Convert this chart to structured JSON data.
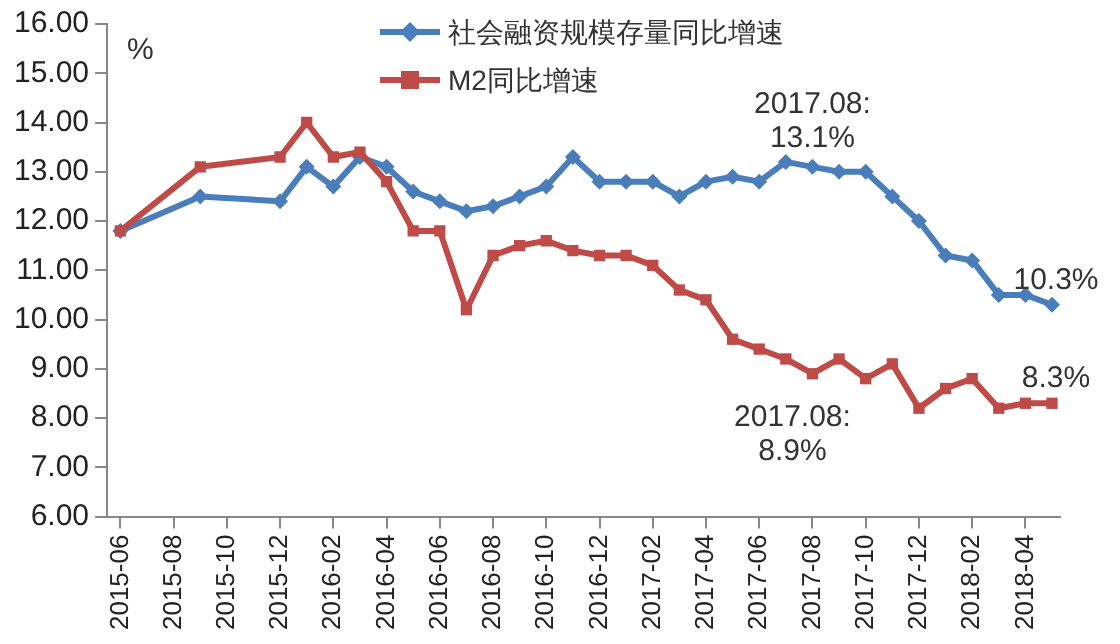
{
  "chart_data": {
    "type": "line",
    "ylabel": "%",
    "x": [
      "2015-06",
      "2015-09",
      "2015-12",
      "2016-01",
      "2016-02",
      "2016-03",
      "2016-04",
      "2016-05",
      "2016-06",
      "2016-07",
      "2016-08",
      "2016-09",
      "2016-10",
      "2016-11",
      "2016-12",
      "2017-01",
      "2017-02",
      "2017-03",
      "2017-04",
      "2017-05",
      "2017-06",
      "2017-07",
      "2017-08",
      "2017-09",
      "2017-10",
      "2017-11",
      "2017-12",
      "2018-01",
      "2018-02",
      "2018-03",
      "2018-04",
      "2018-05"
    ],
    "series": [
      {
        "name": "社会融资规模存量同比增速",
        "color": "#4a7ebb",
        "marker": "diamond",
        "values": [
          11.8,
          12.5,
          12.4,
          13.1,
          12.7,
          13.3,
          13.1,
          12.6,
          12.4,
          12.2,
          12.3,
          12.5,
          12.7,
          13.3,
          12.8,
          12.8,
          12.8,
          12.5,
          12.8,
          12.9,
          12.8,
          13.2,
          13.1,
          13.0,
          13.0,
          12.5,
          12.0,
          11.3,
          11.2,
          10.5,
          10.5,
          10.3
        ]
      },
      {
        "name": "M2同比增速",
        "color": "#be4b48",
        "marker": "square",
        "values": [
          11.8,
          13.1,
          13.3,
          14.0,
          13.3,
          13.4,
          12.8,
          11.8,
          11.8,
          10.2,
          11.3,
          11.5,
          11.6,
          11.4,
          11.3,
          11.3,
          11.1,
          10.6,
          10.4,
          9.6,
          9.4,
          9.2,
          8.9,
          9.2,
          8.8,
          9.1,
          8.2,
          8.6,
          8.8,
          8.2,
          8.3,
          8.3
        ]
      }
    ],
    "xlim": [
      "2015-05-16",
      "2018-05-10"
    ],
    "xticks": [
      "2015-06",
      "2015-08",
      "2015-10",
      "2015-12",
      "2016-02",
      "2016-04",
      "2016-06",
      "2016-08",
      "2016-10",
      "2016-12",
      "2017-02",
      "2017-04",
      "2017-06",
      "2017-08",
      "2017-10",
      "2017-12",
      "2018-02",
      "2018-04"
    ],
    "ylim": [
      6,
      16
    ],
    "yticks": [
      {
        "value": 6,
        "label": "6.00"
      },
      {
        "value": 7,
        "label": "7.00"
      },
      {
        "value": 8,
        "label": "8.00"
      },
      {
        "value": 9,
        "label": "9.00"
      },
      {
        "value": 10,
        "label": "10.00"
      },
      {
        "value": 11,
        "label": "11.00"
      },
      {
        "value": 12,
        "label": "12.00"
      },
      {
        "value": 13,
        "label": "13.00"
      },
      {
        "value": 14,
        "label": "14.00"
      },
      {
        "value": 15,
        "label": "15.00"
      },
      {
        "value": 16,
        "label": "16.00"
      }
    ],
    "grid": false,
    "legend": "top",
    "line_style": "solid",
    "annotations": [
      {
        "text": "2017.08:\n13.1%",
        "x": "2017-08",
        "y": 13.1
      },
      {
        "text": "10.3%",
        "x": "2018-05",
        "y": 10.3
      },
      {
        "text": "2017.08:\n8.9%",
        "x": "2017-08",
        "y": 8.9
      },
      {
        "text": "8.3%",
        "x": "2018-05",
        "y": 8.3
      }
    ]
  }
}
